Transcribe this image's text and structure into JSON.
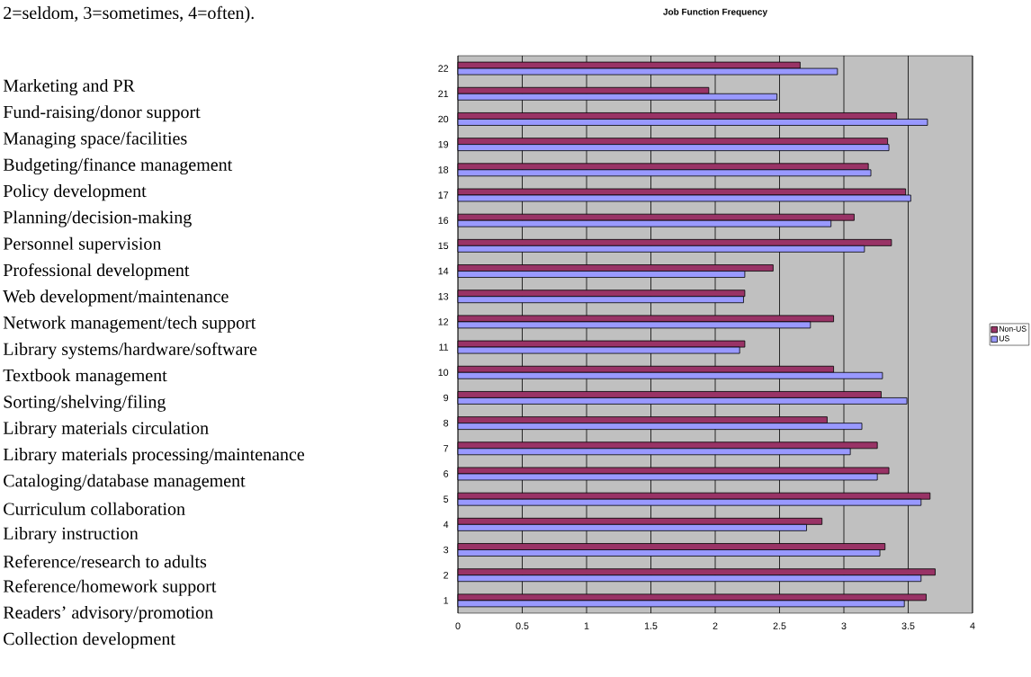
{
  "chart_data": {
    "type": "bar",
    "orientation": "horizontal",
    "title": "Job Function Frequency",
    "categories": [
      "22",
      "21",
      "20",
      "19",
      "18",
      "17",
      "16",
      "15",
      "14",
      "13",
      "12",
      "11",
      "10",
      "9",
      "8",
      "7",
      "6",
      "5",
      "4",
      "3",
      "2",
      "1"
    ],
    "series": [
      {
        "name": "Non-US",
        "color": "#993366",
        "values": [
          2.66,
          1.95,
          3.41,
          3.34,
          3.19,
          3.48,
          3.08,
          3.37,
          2.45,
          2.23,
          2.92,
          2.23,
          2.92,
          3.29,
          2.87,
          3.26,
          3.35,
          3.67,
          2.83,
          3.32,
          3.71,
          3.64
        ]
      },
      {
        "name": "US",
        "color": "#9999ff",
        "values": [
          2.95,
          2.48,
          3.65,
          3.35,
          3.21,
          3.52,
          2.9,
          3.16,
          2.23,
          2.22,
          2.74,
          2.19,
          3.3,
          3.49,
          3.14,
          3.05,
          3.26,
          3.6,
          2.71,
          3.28,
          3.6,
          3.47
        ]
      }
    ],
    "xlim": [
      0,
      4
    ],
    "xticks": [
      0,
      0.5,
      1,
      1.5,
      2,
      2.5,
      3,
      3.5,
      4
    ],
    "grid": "x",
    "legend": "right",
    "annotations": [
      "2=seldom, 3=sometimes, 4=often).",
      "Marketing and PR",
      "Fund-raising/donor support",
      "Managing space/facilities",
      "Budgeting/finance management",
      "Policy development",
      "Planning/decision-making",
      "Personnel supervision",
      "Professional development",
      "Web development/maintenance",
      "Network management/tech support",
      "Library systems/hardware/software",
      "Textbook management",
      "Sorting/shelving/filing",
      "Library materials circulation",
      "Library materials processing/maintenance",
      "Cataloging/database management",
      "Curriculum collaboration",
      "Library instruction",
      "Reference/research to adults",
      "Reference/homework support",
      "Readers’ advisory/promotion",
      "Collection development"
    ]
  }
}
